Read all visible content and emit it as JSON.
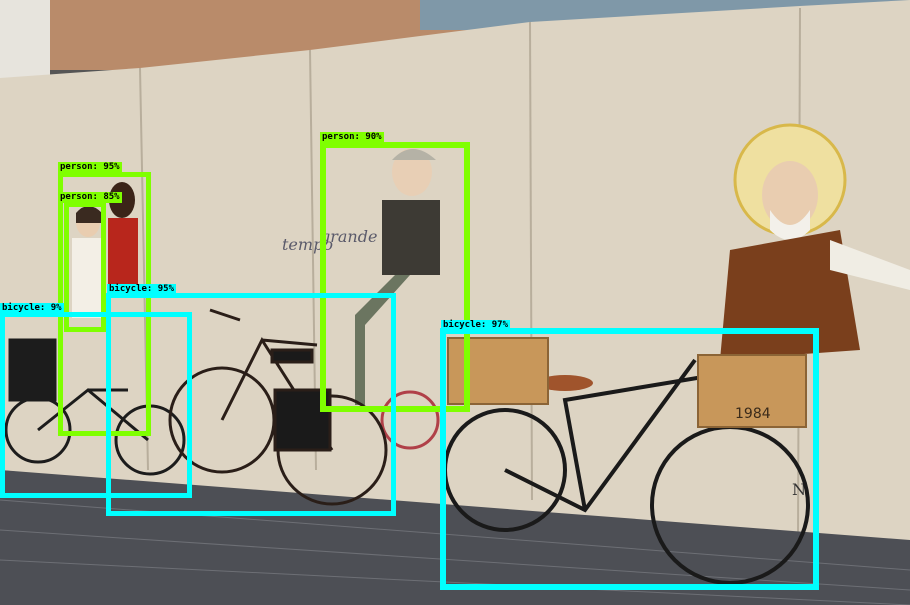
{
  "detections": [
    {
      "id": "person-95",
      "text": "person: 95%",
      "color": "#7fff00"
    },
    {
      "id": "person-85",
      "text": "person: 85%",
      "color": "#7fff00"
    },
    {
      "id": "person-90",
      "text": "person: 90%",
      "color": "#7fff00"
    },
    {
      "id": "bicycle-left",
      "text": "bicycle: 9%",
      "color": "#00ffff"
    },
    {
      "id": "bicycle-95",
      "text": "bicycle: 95%",
      "color": "#00ffff"
    },
    {
      "id": "bicycle-97",
      "text": "bicycle: 97%",
      "color": "#00ffff"
    }
  ],
  "scene": {
    "sign_text": "1984",
    "mural_words_1": "tempo",
    "mural_words_2": "grande",
    "edge_text": "N."
  }
}
